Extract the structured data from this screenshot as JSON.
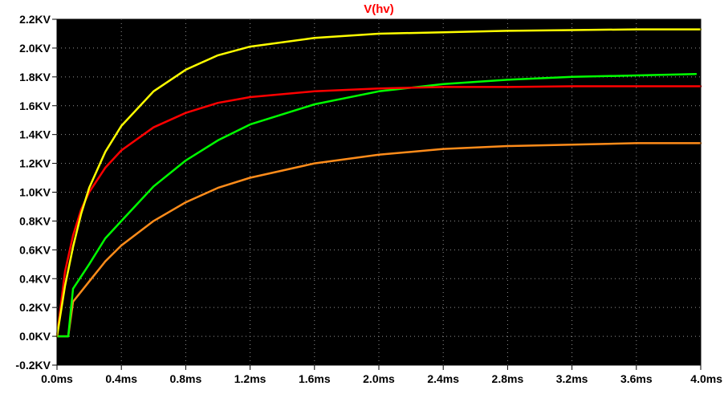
{
  "chart_data": {
    "type": "line",
    "title": "V(hv)",
    "xlabel": "",
    "ylabel": "",
    "xlim": [
      0,
      4.0
    ],
    "ylim": [
      -0.2,
      2.2
    ],
    "x_unit": "ms",
    "y_unit": "KV",
    "x_ticks": [
      {
        "value": 0.0,
        "label": "0.0ms"
      },
      {
        "value": 0.4,
        "label": "0.4ms"
      },
      {
        "value": 0.8,
        "label": "0.8ms"
      },
      {
        "value": 1.2,
        "label": "1.2ms"
      },
      {
        "value": 1.6,
        "label": "1.6ms"
      },
      {
        "value": 2.0,
        "label": "2.0ms"
      },
      {
        "value": 2.4,
        "label": "2.4ms"
      },
      {
        "value": 2.8,
        "label": "2.8ms"
      },
      {
        "value": 3.2,
        "label": "3.2ms"
      },
      {
        "value": 3.6,
        "label": "3.6ms"
      },
      {
        "value": 4.0,
        "label": "4.0ms"
      }
    ],
    "y_ticks": [
      {
        "value": 2.2,
        "label": "2.2KV"
      },
      {
        "value": 2.0,
        "label": "2.0KV"
      },
      {
        "value": 1.8,
        "label": "1.8KV"
      },
      {
        "value": 1.6,
        "label": "1.6KV"
      },
      {
        "value": 1.4,
        "label": "1.4KV"
      },
      {
        "value": 1.2,
        "label": "1.2KV"
      },
      {
        "value": 1.0,
        "label": "1.0KV"
      },
      {
        "value": 0.8,
        "label": "0.8KV"
      },
      {
        "value": 0.6,
        "label": "0.6KV"
      },
      {
        "value": 0.4,
        "label": "0.4KV"
      },
      {
        "value": 0.2,
        "label": "0.2KV"
      },
      {
        "value": 0.0,
        "label": "0.0KV"
      },
      {
        "value": -0.2,
        "label": "-0.2KV"
      }
    ],
    "grid": true,
    "background": "#000000",
    "grid_color": "#909090",
    "title_color": "#ff0000",
    "series": [
      {
        "color": "#ffff00",
        "x": [
          0.0,
          0.05,
          0.1,
          0.15,
          0.2,
          0.3,
          0.4,
          0.6,
          0.8,
          1.0,
          1.2,
          1.6,
          2.0,
          2.4,
          2.8,
          3.2,
          3.6,
          4.0
        ],
        "y": [
          0.0,
          0.35,
          0.62,
          0.85,
          1.03,
          1.28,
          1.46,
          1.7,
          1.85,
          1.95,
          2.01,
          2.07,
          2.1,
          2.11,
          2.12,
          2.125,
          2.13,
          2.13
        ]
      },
      {
        "color": "#ff0000",
        "x": [
          0.0,
          0.05,
          0.1,
          0.15,
          0.2,
          0.3,
          0.4,
          0.6,
          0.8,
          1.0,
          1.2,
          1.6,
          2.0,
          2.4,
          2.8,
          3.2,
          3.6,
          4.0
        ],
        "y": [
          0.0,
          0.45,
          0.7,
          0.88,
          1.0,
          1.17,
          1.29,
          1.45,
          1.55,
          1.62,
          1.66,
          1.7,
          1.72,
          1.73,
          1.73,
          1.735,
          1.735,
          1.735
        ]
      },
      {
        "color": "#00ff00",
        "x": [
          0.0,
          0.07,
          0.1,
          0.2,
          0.3,
          0.4,
          0.6,
          0.8,
          1.0,
          1.2,
          1.6,
          2.0,
          2.4,
          2.8,
          3.2,
          3.6,
          3.97
        ],
        "y": [
          0.0,
          0.0,
          0.33,
          0.5,
          0.68,
          0.8,
          1.04,
          1.22,
          1.36,
          1.47,
          1.61,
          1.7,
          1.75,
          1.78,
          1.8,
          1.81,
          1.82
        ]
      },
      {
        "color": "#ff8c1a",
        "x": [
          0.0,
          0.07,
          0.1,
          0.2,
          0.3,
          0.4,
          0.6,
          0.8,
          1.0,
          1.2,
          1.6,
          2.0,
          2.4,
          2.8,
          3.2,
          3.6,
          4.0
        ],
        "y": [
          0.0,
          0.0,
          0.24,
          0.38,
          0.52,
          0.63,
          0.8,
          0.93,
          1.03,
          1.1,
          1.2,
          1.26,
          1.3,
          1.32,
          1.33,
          1.34,
          1.34
        ]
      }
    ]
  }
}
